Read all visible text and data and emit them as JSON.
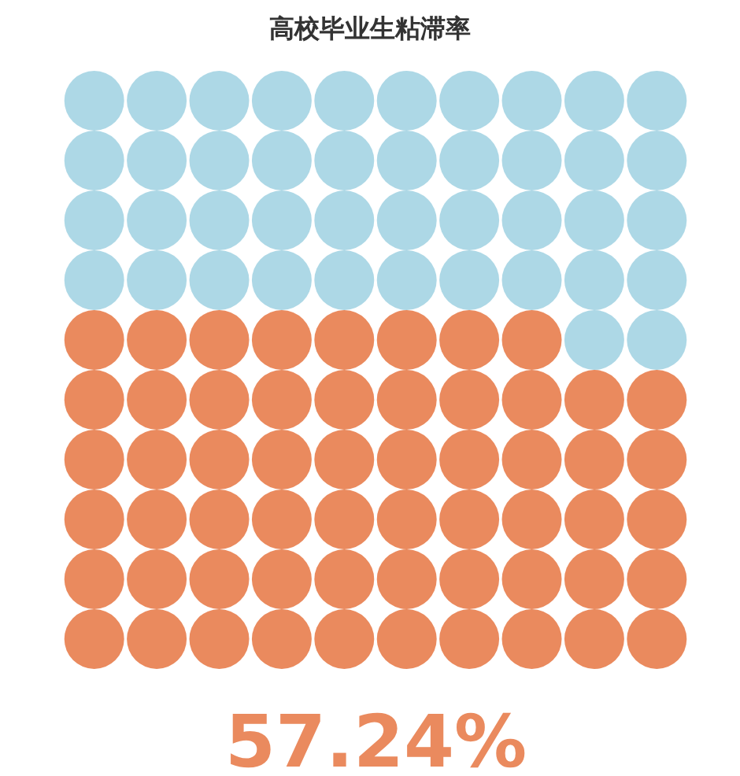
{
  "chart_data": {
    "type": "other",
    "title": "高校毕业生粘滞率",
    "values": [
      57.24
    ],
    "value_labels": [
      "57.24%"
    ],
    "color": "#ea8a5e"
  }
}
